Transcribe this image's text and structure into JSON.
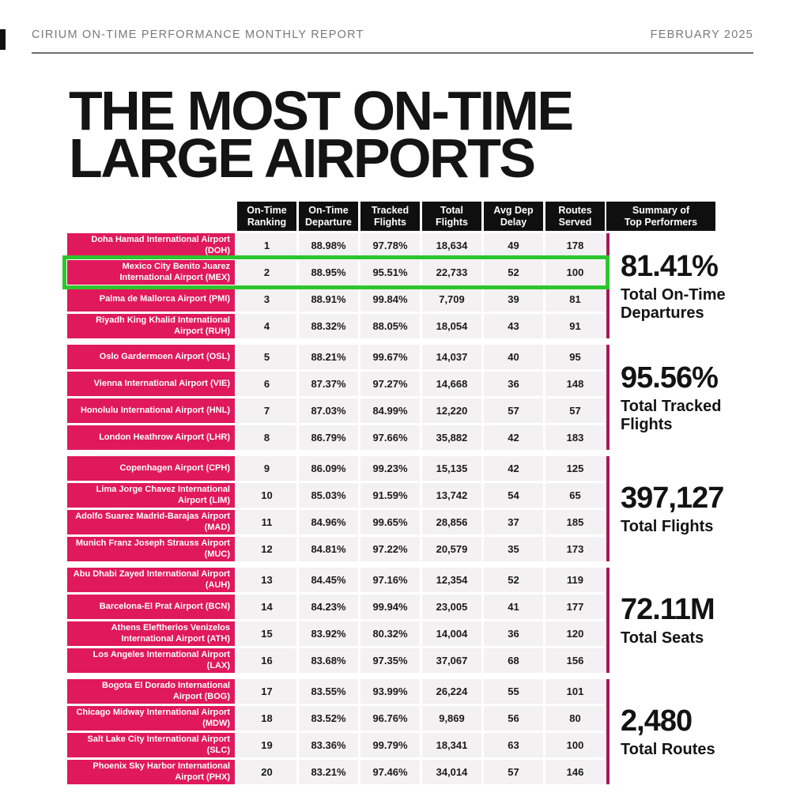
{
  "colors": {
    "accent_pink": "#E0195C",
    "summary_line_pink": "#A41A58",
    "highlight_green": "#2DC52D",
    "header_black": "#0F0F0F",
    "cell_background": "#F3F1F2"
  },
  "masthead": {
    "report_name": "CIRIUM ON-TIME PERFORMANCE MONTHLY REPORT",
    "period": "FEBRUARY 2025"
  },
  "title_lines": [
    "THE MOST ON-TIME",
    "LARGE AIRPORTS"
  ],
  "table": {
    "columns": [
      "On-Time\nRanking",
      "On-Time\nDeparture",
      "Tracked\nFlights",
      "Total\nFlights",
      "Avg Dep\nDelay",
      "Routes\nServed"
    ],
    "summary_header": "Summary of\nTop Performers",
    "rows": [
      {
        "airport": "Doha Hamad International Airport (DOH)",
        "rank": "1",
        "on_time_departure": "88.98%",
        "tracked_flights": "97.78%",
        "total_flights": "18,634",
        "avg_dep_delay": "49",
        "routes_served": "178",
        "highlighted": false
      },
      {
        "airport": "Mexico City Benito Juarez International Airport (MEX)",
        "rank": "2",
        "on_time_departure": "88.95%",
        "tracked_flights": "95.51%",
        "total_flights": "22,733",
        "avg_dep_delay": "52",
        "routes_served": "100",
        "highlighted": true
      },
      {
        "airport": "Palma de Mallorca Airport (PMI)",
        "rank": "3",
        "on_time_departure": "88.91%",
        "tracked_flights": "99.84%",
        "total_flights": "7,709",
        "avg_dep_delay": "39",
        "routes_served": "81",
        "highlighted": false
      },
      {
        "airport": "Riyadh King Khalid International Airport (RUH)",
        "rank": "4",
        "on_time_departure": "88.32%",
        "tracked_flights": "88.05%",
        "total_flights": "18,054",
        "avg_dep_delay": "43",
        "routes_served": "91",
        "highlighted": false
      },
      {
        "airport": "Oslo Gardermoen Airport (OSL)",
        "rank": "5",
        "on_time_departure": "88.21%",
        "tracked_flights": "99.67%",
        "total_flights": "14,037",
        "avg_dep_delay": "40",
        "routes_served": "95",
        "highlighted": false
      },
      {
        "airport": "Vienna International Airport (VIE)",
        "rank": "6",
        "on_time_departure": "87.37%",
        "tracked_flights": "97.27%",
        "total_flights": "14,668",
        "avg_dep_delay": "36",
        "routes_served": "148",
        "highlighted": false
      },
      {
        "airport": "Honolulu International Airport (HNL)",
        "rank": "7",
        "on_time_departure": "87.03%",
        "tracked_flights": "84.99%",
        "total_flights": "12,220",
        "avg_dep_delay": "57",
        "routes_served": "57",
        "highlighted": false
      },
      {
        "airport": "London Heathrow Airport (LHR)",
        "rank": "8",
        "on_time_departure": "86.79%",
        "tracked_flights": "97.66%",
        "total_flights": "35,882",
        "avg_dep_delay": "42",
        "routes_served": "183",
        "highlighted": false
      },
      {
        "airport": "Copenhagen Airport (CPH)",
        "rank": "9",
        "on_time_departure": "86.09%",
        "tracked_flights": "99.23%",
        "total_flights": "15,135",
        "avg_dep_delay": "42",
        "routes_served": "125",
        "highlighted": false
      },
      {
        "airport": "Lima Jorge Chavez International Airport (LIM)",
        "rank": "10",
        "on_time_departure": "85.03%",
        "tracked_flights": "91.59%",
        "total_flights": "13,742",
        "avg_dep_delay": "54",
        "routes_served": "65",
        "highlighted": false
      },
      {
        "airport": "Adolfo Suarez Madrid-Barajas Airport (MAD)",
        "rank": "11",
        "on_time_departure": "84.96%",
        "tracked_flights": "99.65%",
        "total_flights": "28,856",
        "avg_dep_delay": "37",
        "routes_served": "185",
        "highlighted": false
      },
      {
        "airport": "Munich Franz Joseph Strauss Airport (MUC)",
        "rank": "12",
        "on_time_departure": "84.81%",
        "tracked_flights": "97.22%",
        "total_flights": "20,579",
        "avg_dep_delay": "35",
        "routes_served": "173",
        "highlighted": false
      },
      {
        "airport": "Abu Dhabi Zayed International Airport (AUH)",
        "rank": "13",
        "on_time_departure": "84.45%",
        "tracked_flights": "97.16%",
        "total_flights": "12,354",
        "avg_dep_delay": "52",
        "routes_served": "119",
        "highlighted": false
      },
      {
        "airport": "Barcelona-El Prat Airport (BCN)",
        "rank": "14",
        "on_time_departure": "84.23%",
        "tracked_flights": "99.94%",
        "total_flights": "23,005",
        "avg_dep_delay": "41",
        "routes_served": "177",
        "highlighted": false
      },
      {
        "airport": "Athens Eleftherios Venizelos International Airport (ATH)",
        "rank": "15",
        "on_time_departure": "83.92%",
        "tracked_flights": "80.32%",
        "total_flights": "14,004",
        "avg_dep_delay": "36",
        "routes_served": "120",
        "highlighted": false
      },
      {
        "airport": "Los Angeles International Airport (LAX)",
        "rank": "16",
        "on_time_departure": "83.68%",
        "tracked_flights": "97.35%",
        "total_flights": "37,067",
        "avg_dep_delay": "68",
        "routes_served": "156",
        "highlighted": false
      },
      {
        "airport": "Bogota El Dorado International Airport (BOG)",
        "rank": "17",
        "on_time_departure": "83.55%",
        "tracked_flights": "93.99%",
        "total_flights": "26,224",
        "avg_dep_delay": "55",
        "routes_served": "101",
        "highlighted": false
      },
      {
        "airport": "Chicago Midway International Airport (MDW)",
        "rank": "18",
        "on_time_departure": "83.52%",
        "tracked_flights": "96.76%",
        "total_flights": "9,869",
        "avg_dep_delay": "56",
        "routes_served": "80",
        "highlighted": false
      },
      {
        "airport": "Salt Lake City International Airport (SLC)",
        "rank": "19",
        "on_time_departure": "83.36%",
        "tracked_flights": "99.79%",
        "total_flights": "18,341",
        "avg_dep_delay": "63",
        "routes_served": "100",
        "highlighted": false
      },
      {
        "airport": "Phoenix Sky Harbor International Airport (PHX)",
        "rank": "20",
        "on_time_departure": "83.21%",
        "tracked_flights": "97.46%",
        "total_flights": "34,014",
        "avg_dep_delay": "57",
        "routes_served": "146",
        "highlighted": false
      }
    ]
  },
  "summary_stats": [
    {
      "value": "81.41%",
      "label": "Total On-Time Departures"
    },
    {
      "value": "95.56%",
      "label": "Total Tracked Flights"
    },
    {
      "value": "397,127",
      "label": "Total Flights"
    },
    {
      "value": "72.11M",
      "label": "Total Seats"
    },
    {
      "value": "2,480",
      "label": "Total Routes"
    }
  ]
}
